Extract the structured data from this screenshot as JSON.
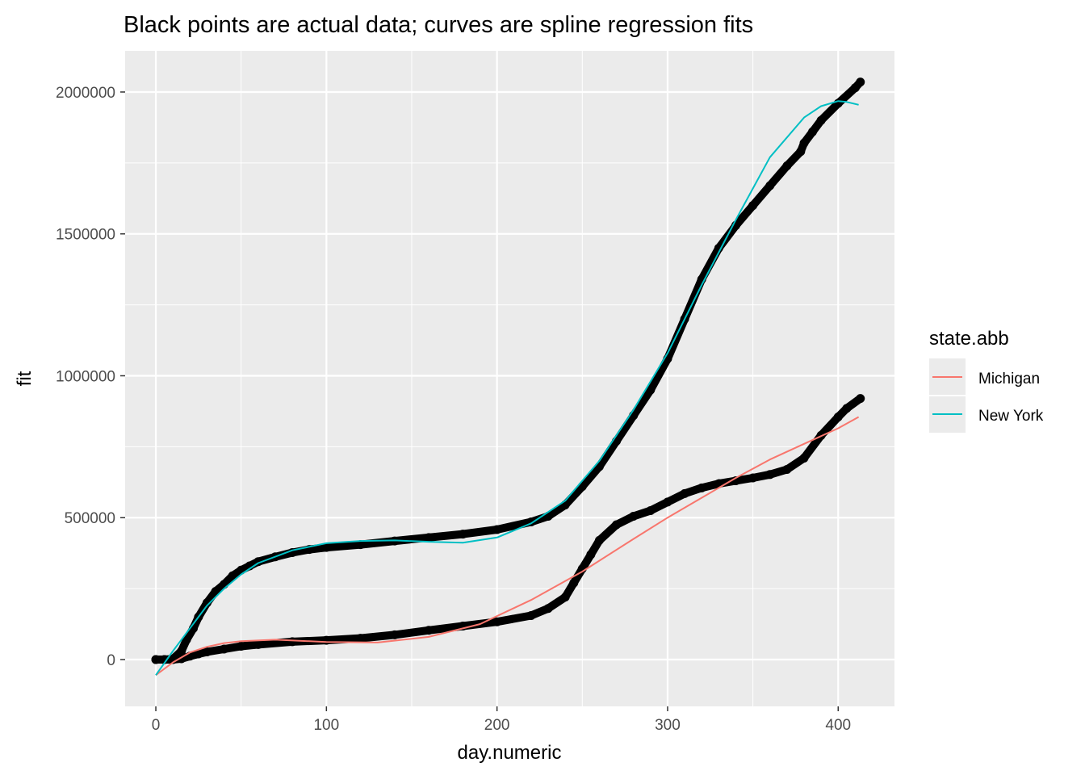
{
  "chart_data": {
    "type": "line",
    "title": "Black points are actual data; curves are spline regression fits",
    "xlabel": "day.numeric",
    "ylabel": "fit",
    "xlim": [
      -18,
      433
    ],
    "ylim": [
      -165000,
      2145000
    ],
    "x_ticks": [
      0,
      100,
      200,
      300,
      400
    ],
    "x_tick_labels": [
      "0",
      "100",
      "200",
      "300",
      "400"
    ],
    "y_ticks": [
      0,
      500000,
      1000000,
      1500000,
      2000000
    ],
    "y_tick_labels": [
      "0",
      "500000",
      "1000000",
      "1500000",
      "2000000"
    ],
    "grid": true,
    "legend": {
      "title": "state.abb",
      "position": "right",
      "entries": [
        "Michigan",
        "New York"
      ]
    },
    "series": [
      {
        "name": "Michigan",
        "kind": "fit",
        "color": "#F8766D",
        "x": [
          0,
          10,
          20,
          30,
          40,
          50,
          70,
          100,
          130,
          160,
          190,
          220,
          250,
          280,
          300,
          320,
          340,
          360,
          380,
          400,
          412
        ],
        "y": [
          -55000,
          -10000,
          25000,
          45000,
          58000,
          65000,
          70000,
          62000,
          60000,
          80000,
          125000,
          210000,
          310000,
          425000,
          500000,
          570000,
          640000,
          705000,
          760000,
          815000,
          855000
        ]
      },
      {
        "name": "New York",
        "kind": "fit",
        "color": "#00BFC4",
        "x": [
          0,
          10,
          20,
          30,
          40,
          50,
          60,
          80,
          100,
          120,
          140,
          160,
          180,
          200,
          220,
          240,
          260,
          280,
          300,
          320,
          340,
          360,
          380,
          390,
          400,
          405,
          412
        ],
        "y": [
          -55000,
          30000,
          110000,
          190000,
          250000,
          300000,
          340000,
          385000,
          410000,
          418000,
          420000,
          415000,
          412000,
          430000,
          480000,
          560000,
          700000,
          880000,
          1080000,
          1320000,
          1550000,
          1770000,
          1910000,
          1950000,
          1968000,
          1965000,
          1955000
        ]
      },
      {
        "name": "",
        "kind": "actual",
        "color": "#000000",
        "x": [
          0,
          5,
          10,
          15,
          18,
          22,
          25,
          30,
          35,
          40,
          45,
          50,
          55,
          60,
          70,
          80,
          90,
          100,
          120,
          140,
          160,
          180,
          200,
          220,
          230,
          240,
          250,
          260,
          270,
          280,
          290,
          300,
          310,
          320,
          330,
          340,
          350,
          360,
          370,
          378,
          380,
          385,
          390,
          400,
          410,
          413
        ],
        "y": [
          0,
          0,
          2000,
          30000,
          70000,
          110000,
          150000,
          200000,
          240000,
          265000,
          295000,
          315000,
          330000,
          345000,
          362000,
          377000,
          388000,
          395000,
          405000,
          418000,
          430000,
          442000,
          458000,
          485000,
          505000,
          545000,
          610000,
          680000,
          770000,
          860000,
          950000,
          1060000,
          1200000,
          1340000,
          1450000,
          1530000,
          1600000,
          1670000,
          1740000,
          1790000,
          1820000,
          1860000,
          1900000,
          1960000,
          2015000,
          2035000
        ]
      },
      {
        "name": "",
        "kind": "actual",
        "color": "#000000",
        "x": [
          0,
          5,
          10,
          15,
          20,
          25,
          30,
          40,
          50,
          60,
          80,
          100,
          120,
          140,
          160,
          180,
          200,
          220,
          230,
          240,
          245,
          250,
          255,
          260,
          270,
          280,
          290,
          300,
          310,
          320,
          330,
          340,
          350,
          360,
          370,
          380,
          390,
          400,
          405,
          413
        ],
        "y": [
          0,
          0,
          0,
          3000,
          12000,
          20000,
          27000,
          37000,
          47000,
          53000,
          63000,
          68000,
          75000,
          87000,
          103000,
          118000,
          133000,
          155000,
          180000,
          220000,
          270000,
          320000,
          370000,
          420000,
          475000,
          505000,
          525000,
          555000,
          585000,
          605000,
          620000,
          630000,
          640000,
          652000,
          670000,
          710000,
          790000,
          855000,
          885000,
          920000
        ]
      }
    ]
  }
}
